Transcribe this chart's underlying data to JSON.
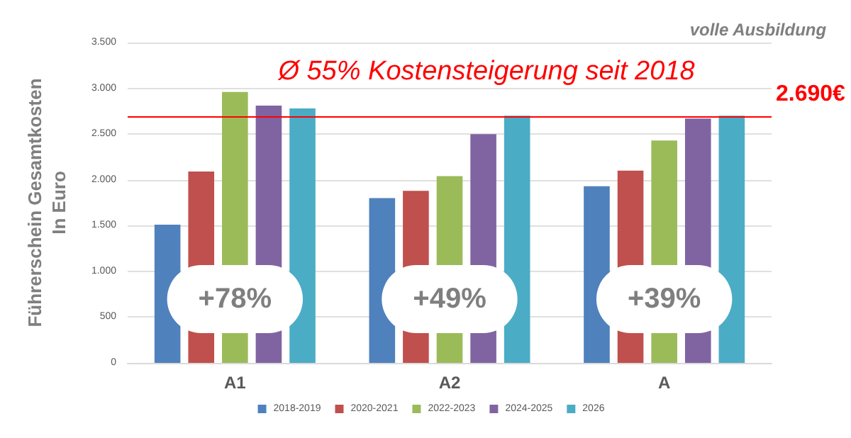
{
  "chart_data": {
    "type": "bar",
    "title": "Ø 55% Kostensteigerung seit 2018",
    "subtitle": "volle Ausbildung",
    "ylabel": "Führerschein Gesamtkosten\nIn Euro",
    "categories": [
      "A1",
      "A2",
      "A"
    ],
    "series": [
      {
        "name": "2018-2019",
        "color": "#4f81bd",
        "values": [
          1510,
          1800,
          1930
        ]
      },
      {
        "name": "2020-2021",
        "color": "#c0504d",
        "values": [
          2090,
          1880,
          2100
        ]
      },
      {
        "name": "2022-2023",
        "color": "#9bbb59",
        "values": [
          2960,
          2040,
          2430
        ]
      },
      {
        "name": "2024-2025",
        "color": "#8064a2",
        "values": [
          2810,
          2500,
          2670
        ]
      },
      {
        "name": "2026",
        "color": "#4bacc6",
        "values": [
          2780,
          2700,
          2700
        ]
      }
    ],
    "ylim": [
      0,
      3500
    ],
    "yticks": [
      {
        "value": 0,
        "label": "0"
      },
      {
        "value": 500,
        "label": "500"
      },
      {
        "value": 1000,
        "label": "1.000"
      },
      {
        "value": 1500,
        "label": "1.500"
      },
      {
        "value": 2000,
        "label": "2.000"
      },
      {
        "value": 2500,
        "label": "2.500"
      },
      {
        "value": 3000,
        "label": "3.000"
      },
      {
        "value": 3500,
        "label": "3.500"
      }
    ],
    "ref_lines": [
      {
        "axis": "y",
        "value": 2690,
        "label": "2.690€",
        "color": "#ff0000"
      }
    ],
    "annotations": [
      "+78%",
      "+49%",
      "+39%"
    ],
    "grid": "y",
    "legend": "bottom"
  }
}
